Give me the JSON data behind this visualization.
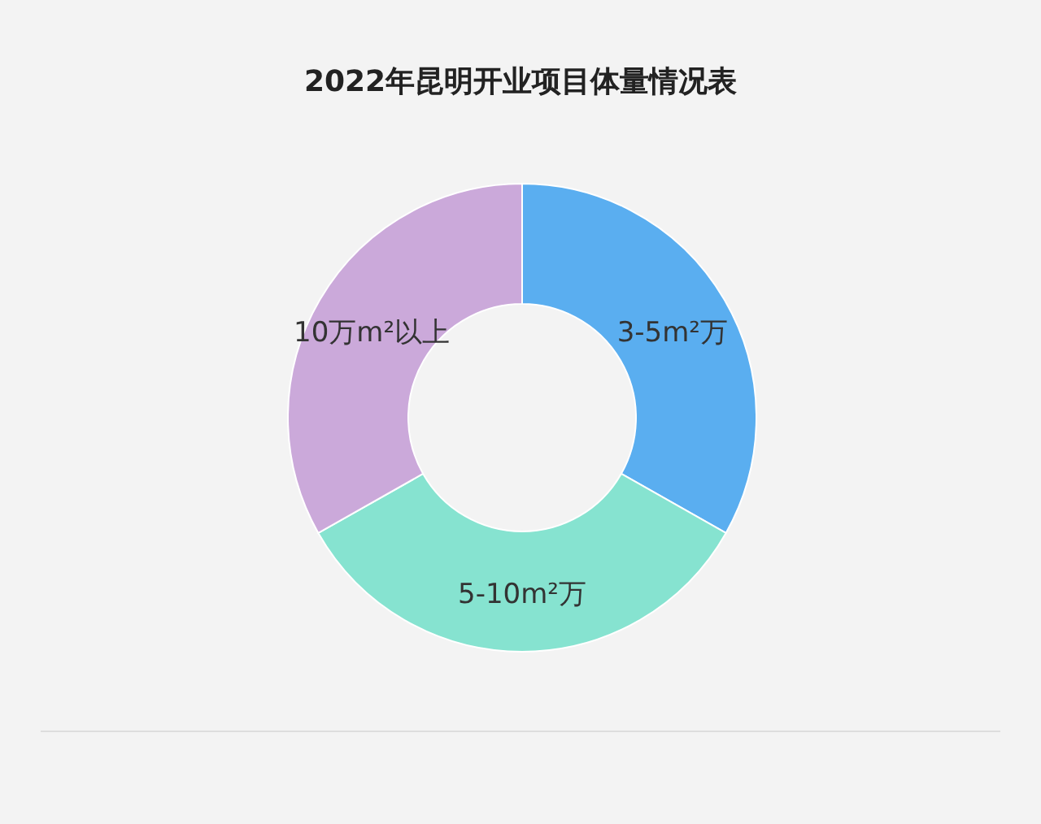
{
  "chart_data": {
    "type": "donut",
    "title": "2022年昆明开业项目体量情况表",
    "categories": [
      "3-5m²万",
      "5-10m²万",
      "10万m²以上"
    ],
    "values": [
      33.2,
      33.6,
      33.2
    ],
    "colors": [
      "#5aaef0",
      "#86e3d0",
      "#cba9da"
    ]
  }
}
